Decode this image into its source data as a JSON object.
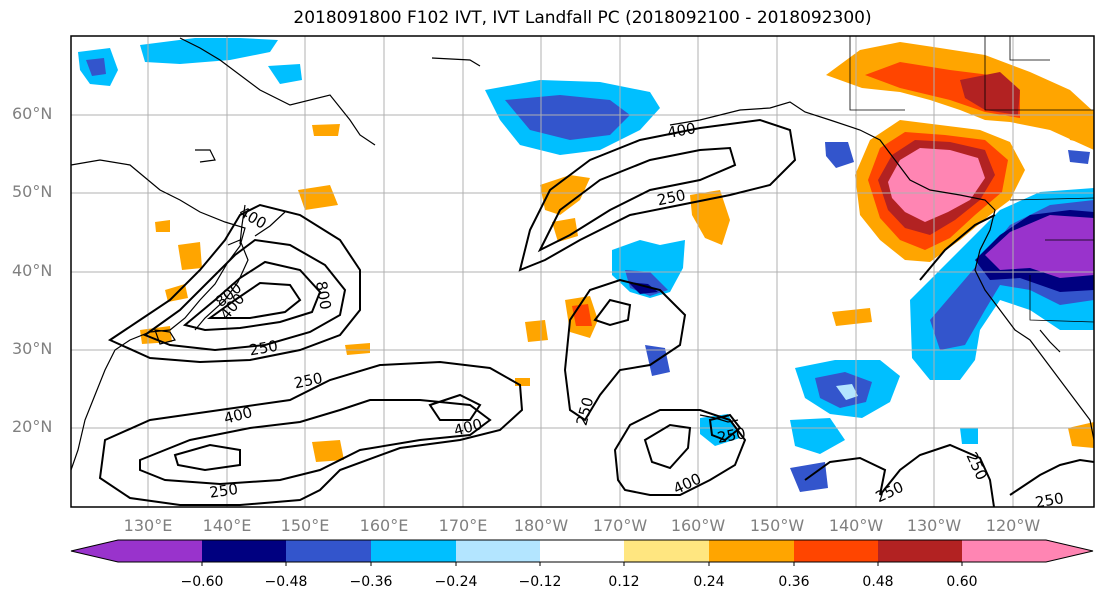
{
  "title": "2018091800 F102 IVT, IVT Landfall PC (2018092100 - 2018092300)",
  "lat_labels": [
    "60°N",
    "50°N",
    "40°N",
    "30°N",
    "20°N"
  ],
  "lon_labels": [
    "130°E",
    "140°E",
    "150°E",
    "160°E",
    "170°E",
    "180°W",
    "170°W",
    "160°W",
    "150°W",
    "140°W",
    "130°W",
    "120°W"
  ],
  "colorbar": {
    "ticks": [
      "−0.60",
      "−0.48",
      "−0.36",
      "−0.24",
      "−0.12",
      "0.12",
      "0.24",
      "0.36",
      "0.48",
      "0.60"
    ],
    "colors": [
      "#9933cc",
      "#000080",
      "#3355cc",
      "#00bfff",
      "#b3e5ff",
      "#ffffff",
      "#ffe680",
      "#ffa500",
      "#ff4500",
      "#b22222",
      "#ff85b3"
    ]
  },
  "contour_labels": [
    {
      "text": "400"
    },
    {
      "text": "250"
    },
    {
      "text": "400"
    },
    {
      "text": "800"
    },
    {
      "text": "800"
    },
    {
      "text": "250"
    },
    {
      "text": "250"
    },
    {
      "text": "400"
    },
    {
      "text": "400"
    },
    {
      "text": "400"
    },
    {
      "text": "250"
    },
    {
      "text": "400"
    },
    {
      "text": "250"
    },
    {
      "text": "250"
    },
    {
      "text": "250"
    },
    {
      "text": "250"
    },
    {
      "text": "250"
    }
  ]
}
